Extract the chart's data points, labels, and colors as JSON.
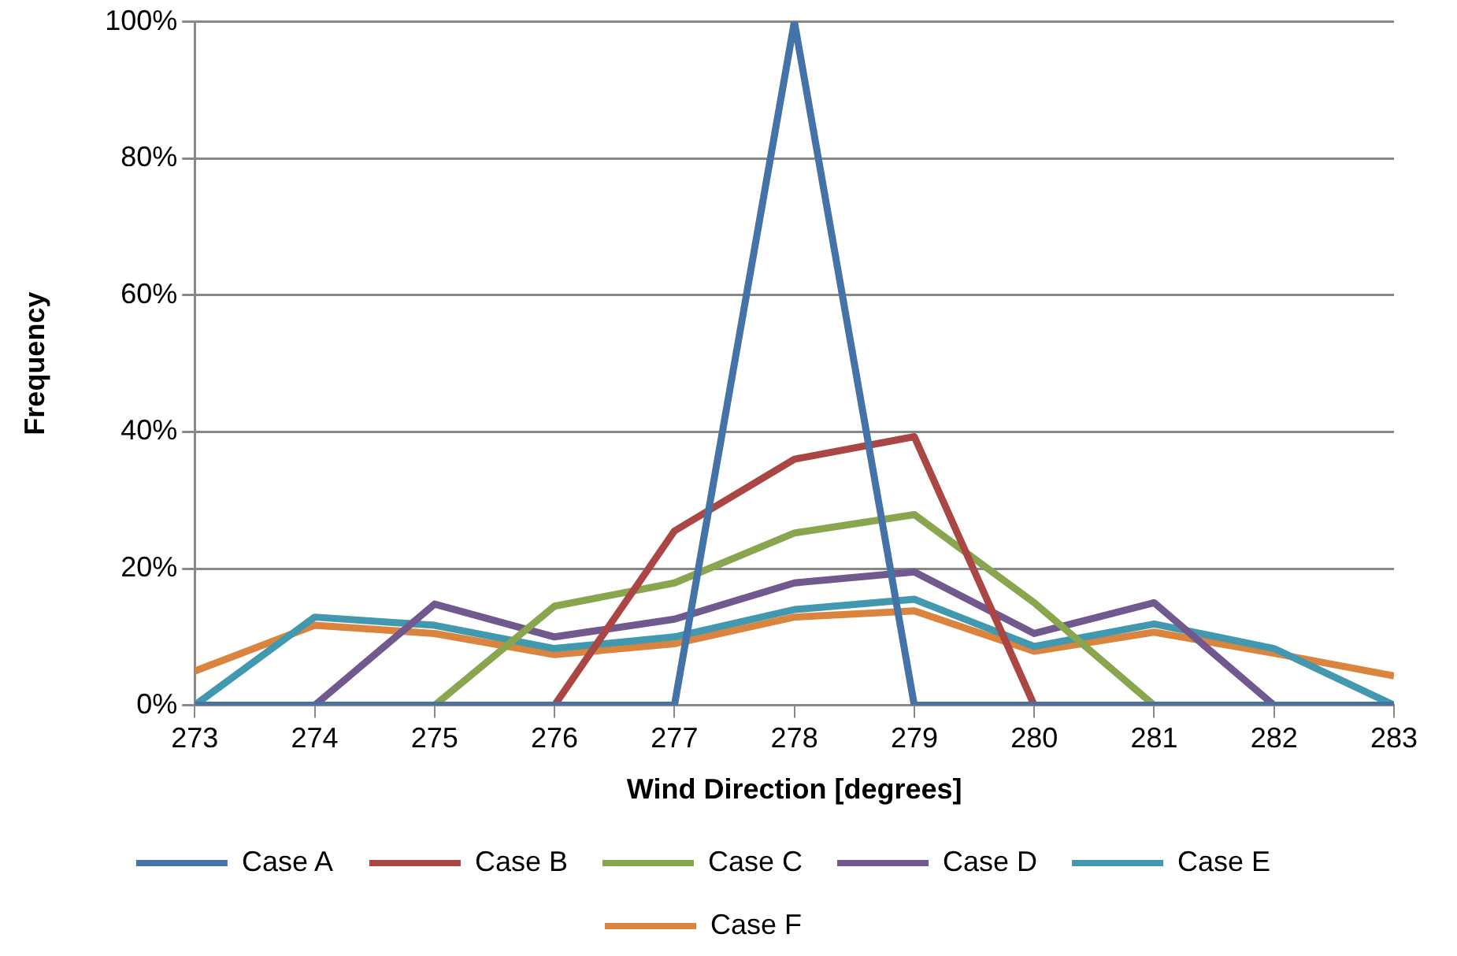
{
  "chart_data": {
    "type": "line",
    "xlabel": "Wind Direction [degrees]",
    "ylabel": "Frequency",
    "x": [
      273,
      274,
      275,
      276,
      277,
      278,
      279,
      280,
      281,
      282,
      283
    ],
    "xlim": [
      273,
      283
    ],
    "xticks": [
      273,
      274,
      275,
      276,
      277,
      278,
      279,
      280,
      281,
      282,
      283
    ],
    "ylim": [
      0,
      100
    ],
    "yticks": [
      {
        "value": 0,
        "label": "0%"
      },
      {
        "value": 20,
        "label": "20%"
      },
      {
        "value": 40,
        "label": "40%"
      },
      {
        "value": 60,
        "label": "60%"
      },
      {
        "value": 80,
        "label": "80%"
      },
      {
        "value": 100,
        "label": "100%"
      }
    ],
    "grid": "y",
    "legend": "bottom",
    "marker": "none",
    "line_style": "solid",
    "series": [
      {
        "name": "Case A",
        "color": "#4572a7",
        "values": [
          0,
          0,
          0,
          0,
          0,
          100,
          0,
          0,
          0,
          0,
          0
        ]
      },
      {
        "name": "Case B",
        "color": "#aa4643",
        "values": [
          null,
          null,
          0,
          0,
          25.5,
          36,
          39.3,
          0,
          0,
          null,
          null
        ]
      },
      {
        "name": "Case C",
        "color": "#89a54e",
        "values": [
          0,
          0,
          0,
          14.5,
          17.9,
          25.2,
          27.9,
          15,
          0,
          0,
          0
        ]
      },
      {
        "name": "Case D",
        "color": "#71588f",
        "values": [
          0,
          0,
          14.8,
          10,
          12.6,
          17.9,
          19.5,
          10.5,
          15,
          0,
          0
        ]
      },
      {
        "name": "Case E",
        "color": "#4198af",
        "values": [
          0,
          12.9,
          11.7,
          8.3,
          10,
          14,
          15.5,
          8.6,
          11.9,
          8.3,
          0
        ]
      },
      {
        "name": "Case F",
        "color": "#db843d",
        "values": [
          5,
          11.7,
          10.5,
          7.4,
          9,
          12.9,
          13.8,
          7.9,
          10.7,
          7.6,
          4.3
        ]
      }
    ]
  }
}
